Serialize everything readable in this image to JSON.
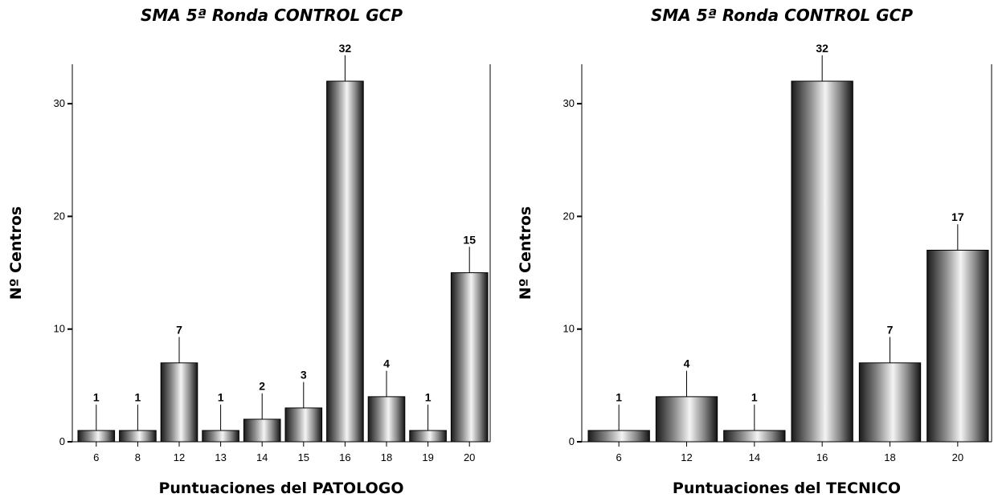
{
  "chart_data": [
    {
      "type": "bar",
      "title": "SMA 5ª Ronda CONTROL GCP",
      "xlabel": "Puntuaciones del PATOLOGO",
      "ylabel": "Nº Centros",
      "categories": [
        "6",
        "8",
        "12",
        "13",
        "14",
        "15",
        "16",
        "18",
        "19",
        "20"
      ],
      "values": [
        1,
        1,
        7,
        1,
        2,
        3,
        32,
        4,
        1,
        15
      ],
      "data_labels": [
        "1",
        "1",
        "7",
        "1",
        "2",
        "3",
        "32",
        "4",
        "1",
        "15"
      ],
      "yticks": [
        "0",
        "10",
        "20",
        "30"
      ],
      "ylim": [
        0,
        33.5
      ],
      "error_bars": true,
      "grid": false
    },
    {
      "type": "bar",
      "title": "SMA 5ª Ronda CONTROL GCP",
      "xlabel": "Puntuaciones del TECNICO",
      "ylabel": "Nº Centros",
      "categories": [
        "6",
        "12",
        "14",
        "16",
        "18",
        "20"
      ],
      "values": [
        1,
        4,
        1,
        32,
        7,
        17
      ],
      "data_labels": [
        "1",
        "4",
        "1",
        "32",
        "7",
        "17"
      ],
      "yticks": [
        "0",
        "10",
        "20",
        "30"
      ],
      "ylim": [
        0,
        33.5
      ],
      "error_bars": true,
      "grid": false
    }
  ]
}
